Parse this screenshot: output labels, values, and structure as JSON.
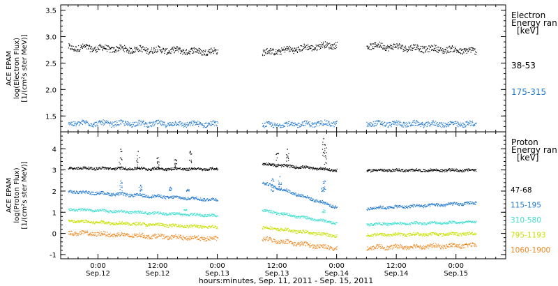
{
  "chart_data": [
    {
      "type": "scatter",
      "panel": "electron",
      "ylabel": [
        "ACE EPAM",
        "log(Electron Flux)",
        "[1/(cm²s ster MeV)]"
      ],
      "ylim": [
        1.2,
        3.6
      ],
      "yticks": [
        1.5,
        2.0,
        2.5,
        3.0,
        3.5
      ],
      "ytick_labels": [
        "1.5",
        "2.0",
        "2.5",
        "3.0",
        "3.5"
      ],
      "legend": {
        "heading": [
          "Electron",
          "Energy ran",
          "[keV]"
        ],
        "placement": "right"
      },
      "series": [
        {
          "name": "38-53",
          "color": "#000000",
          "segments": [
            {
              "x0": -6,
              "x1": 24,
              "y0": 2.8,
              "y1": 2.72
            },
            {
              "x0": 33,
              "x1": 48,
              "y0": 2.7,
              "y1": 2.86
            },
            {
              "x0": 54,
              "x1": 76,
              "y0": 2.84,
              "y1": 2.73
            }
          ],
          "noise": 0.06
        },
        {
          "name": "175-315",
          "color": "#1f77d0",
          "segments": [
            {
              "x0": -6,
              "x1": 24,
              "y0": 1.37,
              "y1": 1.35
            },
            {
              "x0": 33,
              "x1": 48,
              "y0": 1.33,
              "y1": 1.37
            },
            {
              "x0": 54,
              "x1": 76,
              "y0": 1.36,
              "y1": 1.35
            }
          ],
          "noise": 0.05
        }
      ]
    },
    {
      "type": "scatter",
      "panel": "proton",
      "ylabel": [
        "ACE EPAM",
        "log(Proton Flux)",
        "[1/(cm²s ster MeV)]"
      ],
      "ylim": [
        -1.2,
        4.8
      ],
      "yticks": [
        -1,
        0,
        1,
        2,
        3,
        4
      ],
      "ytick_labels": [
        "-1",
        "0",
        "1",
        "2",
        "3",
        "4"
      ],
      "legend": {
        "heading": [
          "Proton",
          "Energy ran",
          "[keV]"
        ],
        "placement": "right"
      },
      "series": [
        {
          "name": "47-68",
          "color": "#000000",
          "segments": [
            {
              "x0": -6,
              "x1": 24,
              "y0": 3.1,
              "y1": 3.05
            },
            {
              "x0": 33,
              "x1": 48,
              "y0": 3.3,
              "y1": 3.0
            },
            {
              "x0": 54,
              "x1": 76,
              "y0": 3.0,
              "y1": 3.0
            }
          ],
          "noise": 0.06,
          "spikes": [
            {
              "x": 4.5,
              "y": 4.0
            },
            {
              "x": 8.0,
              "y": 3.9
            },
            {
              "x": 12.0,
              "y": 3.6
            },
            {
              "x": 15.5,
              "y": 3.5
            },
            {
              "x": 18.5,
              "y": 3.9
            },
            {
              "x": 36.0,
              "y": 3.8
            },
            {
              "x": 38.0,
              "y": 4.0
            },
            {
              "x": 45.3,
              "y": 4.5
            },
            {
              "x": 45.6,
              "y": 4.2
            }
          ]
        },
        {
          "name": "115-195",
          "color": "#1f77d0",
          "segments": [
            {
              "x0": -6,
              "x1": 24,
              "y0": 2.0,
              "y1": 1.6
            },
            {
              "x0": 33,
              "x1": 48,
              "y0": 2.4,
              "y1": 1.25
            },
            {
              "x0": 54,
              "x1": 76,
              "y0": 1.2,
              "y1": 1.45
            }
          ],
          "noise": 0.07,
          "spikes": [
            {
              "x": 4.5,
              "y": 2.5
            },
            {
              "x": 8.5,
              "y": 2.3
            },
            {
              "x": 14.5,
              "y": 2.2
            },
            {
              "x": 18.0,
              "y": 2.1
            },
            {
              "x": 35.0,
              "y": 2.6
            },
            {
              "x": 36.5,
              "y": 2.7
            },
            {
              "x": 45.2,
              "y": 2.2
            },
            {
              "x": 45.5,
              "y": 2.5
            }
          ]
        },
        {
          "name": "310-580",
          "color": "#40e0d0",
          "segments": [
            {
              "x0": -6,
              "x1": 24,
              "y0": 1.15,
              "y1": 0.85
            },
            {
              "x0": 33,
              "x1": 48,
              "y0": 1.1,
              "y1": 0.5
            },
            {
              "x0": 54,
              "x1": 76,
              "y0": 0.45,
              "y1": 0.55
            }
          ],
          "noise": 0.06,
          "spikes": [
            {
              "x": 45.3,
              "y": 1.0
            },
            {
              "x": 17.5,
              "y": 1.1
            }
          ]
        },
        {
          "name": "795-1193",
          "color": "#c8e000",
          "segments": [
            {
              "x0": -6,
              "x1": 24,
              "y0": 0.6,
              "y1": 0.3
            },
            {
              "x0": 33,
              "x1": 48,
              "y0": 0.3,
              "y1": -0.1
            },
            {
              "x0": 54,
              "x1": 76,
              "y0": -0.05,
              "y1": 0.0
            }
          ],
          "noise": 0.07
        },
        {
          "name": "1060-1900",
          "color": "#ee8820",
          "segments": [
            {
              "x0": -6,
              "x1": 24,
              "y0": 0.05,
              "y1": -0.25
            },
            {
              "x0": 33,
              "x1": 48,
              "y0": -0.25,
              "y1": -0.7
            },
            {
              "x0": 54,
              "x1": 76,
              "y0": -0.65,
              "y1": -0.55
            }
          ],
          "noise": 0.1
        }
      ]
    }
  ],
  "xaxis": {
    "xlim": [
      -7.5,
      82
    ],
    "ticks": [
      0,
      12,
      24,
      36,
      48,
      60,
      72
    ],
    "tick_labels": [
      "0:00\nSep.12",
      "12:00\nSep.12",
      "0:00\nSep.13",
      "12:00\nSep.13",
      "0:00\nSep.14",
      "12:00\nSep.14",
      "0:00\nSep.15"
    ],
    "title": "hours:minutes, Sep. 11, 2011 - Sep. 15, 2011"
  }
}
